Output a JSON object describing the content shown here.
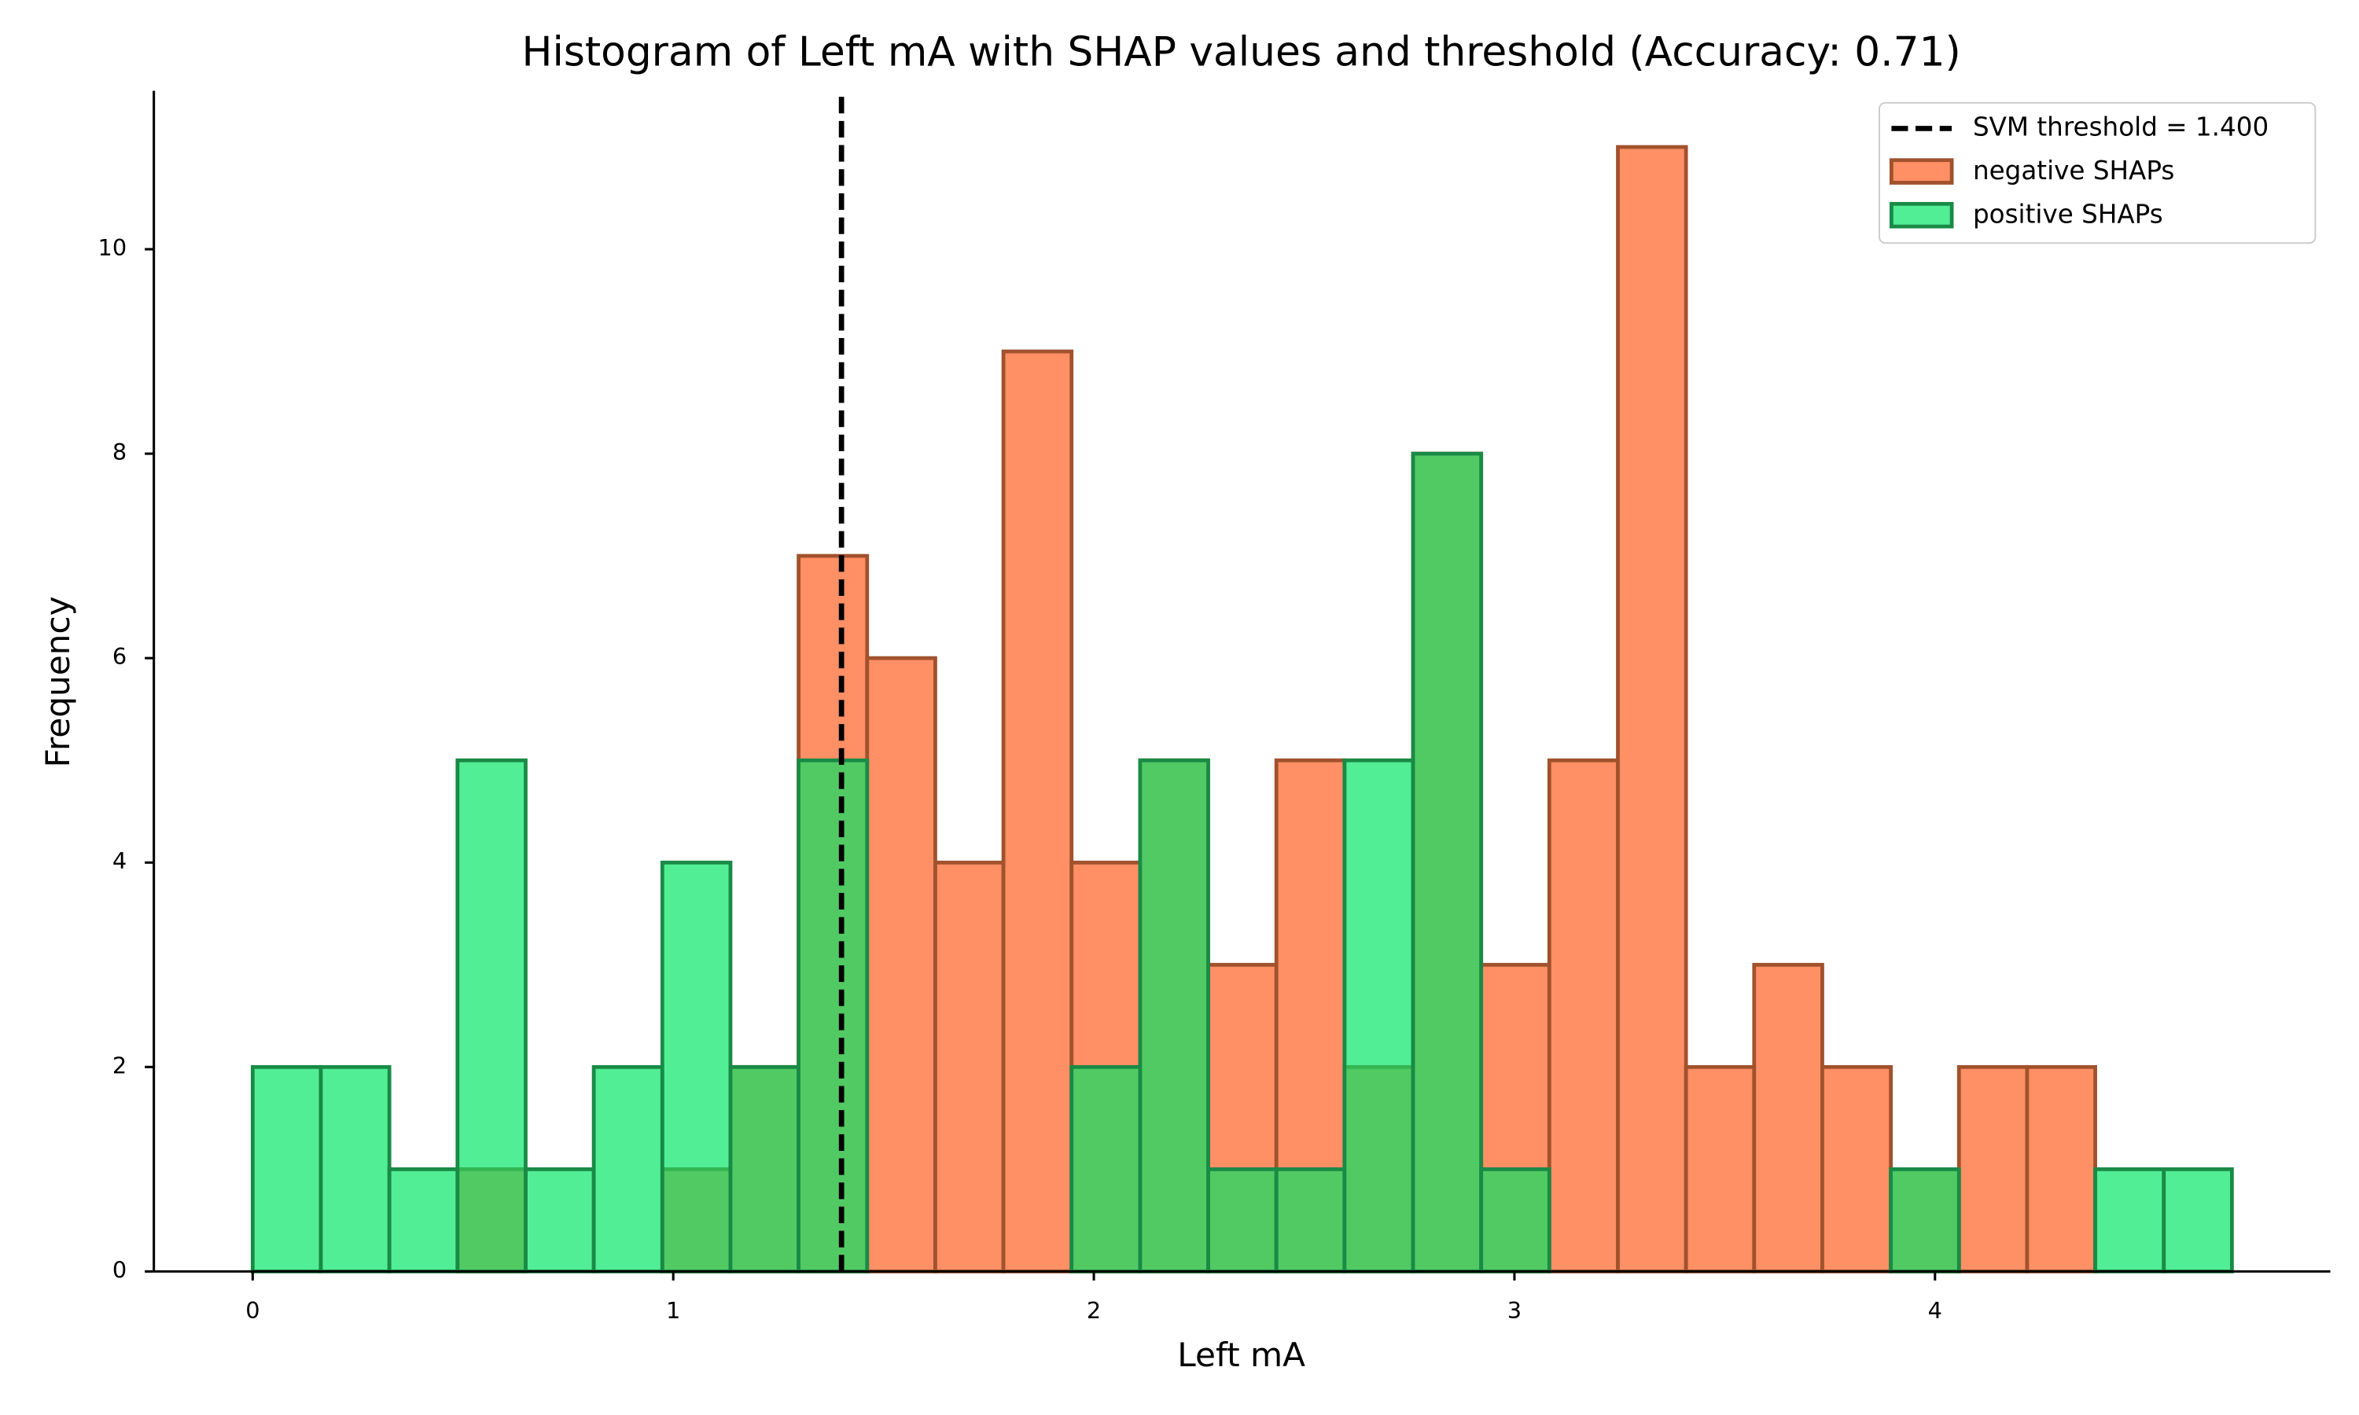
{
  "chart_data": {
    "type": "histogram",
    "title": "Histogram of Left mA with SHAP values and threshold (Accuracy: 0.71)",
    "x_label": "Left mA",
    "y_label": "Frequency",
    "bins": [
      0,
      0.162,
      0.325,
      0.487,
      0.649,
      0.811,
      0.974,
      1.136,
      1.298,
      1.461,
      1.623,
      1.785,
      1.947,
      2.11,
      2.272,
      2.434,
      2.596,
      2.759,
      2.921,
      3.083,
      3.246,
      3.408,
      3.57,
      3.732,
      3.895,
      4.057,
      4.219,
      4.381,
      4.544,
      4.706
    ],
    "series": [
      {
        "name": "negative SHAPs",
        "color": "#ff7f50",
        "values": [
          0,
          0,
          0,
          1,
          0,
          0,
          1,
          2,
          7,
          6,
          4,
          9,
          4,
          5,
          3,
          5,
          2,
          8,
          3,
          5,
          11,
          2,
          3,
          2,
          1,
          2,
          2,
          0,
          0
        ]
      },
      {
        "name": "positive SHAPs",
        "color": "#00e664",
        "values": [
          2,
          2,
          1,
          5,
          1,
          2,
          4,
          2,
          5,
          0,
          0,
          0,
          2,
          5,
          1,
          1,
          5,
          8,
          1,
          0,
          0,
          0,
          0,
          0,
          1,
          0,
          0,
          1,
          1
        ]
      }
    ],
    "threshold": {
      "value": 1.4,
      "label": "SVM threshold = 1.400",
      "color": "#000000"
    },
    "xlim": [
      -0.235,
      4.94
    ],
    "ylim": [
      0,
      11.55
    ],
    "xticks": [
      0,
      1,
      2,
      3,
      4
    ],
    "yticks": [
      0,
      2,
      4,
      6,
      8,
      10
    ],
    "legend": "upper right"
  }
}
